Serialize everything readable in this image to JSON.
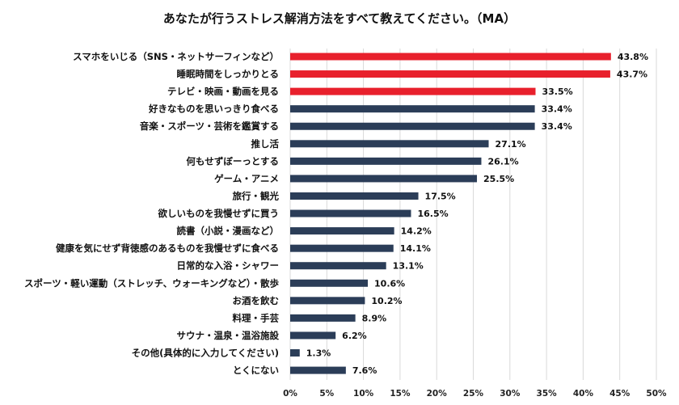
{
  "chart_data": {
    "type": "bar",
    "orientation": "horizontal",
    "title": "あなたが行うストレス解消方法をすべて教えてください。（MA）",
    "xlabel": "",
    "ylabel": "",
    "xlim": [
      0,
      50
    ],
    "x_ticks": [
      "0%",
      "5%",
      "10%",
      "15%",
      "20%",
      "25%",
      "30%",
      "35%",
      "40%",
      "45%",
      "50%"
    ],
    "grid": "vertical",
    "categories": [
      "スマホをいじる（SNS・ネットサーフィンなど）",
      "睡眠時間をしっかりとる",
      "テレビ・映画・動画を見る",
      "好きなものを思いっきり食べる",
      "音楽・スポーツ・芸術を鑑賞する",
      "推し活",
      "何もせずぼーっとする",
      "ゲーム・アニメ",
      "旅行・観光",
      "欲しいものを我慢せずに買う",
      "読書（小説・漫画など）",
      "健康を気にせず背徳感のあるものを我慢せずに食べる",
      "日常的な入浴・シャワー",
      "スポーツ・軽い運動（ストレッチ、ウォーキングなど）・散歩",
      "お酒を飲む",
      "料理・手芸",
      "サウナ・温泉・温浴施設",
      "その他(具体的に入力してください)",
      "とくにない"
    ],
    "values": [
      43.8,
      43.7,
      33.5,
      33.4,
      33.4,
      27.1,
      26.1,
      25.5,
      17.5,
      16.5,
      14.2,
      14.1,
      13.1,
      10.6,
      10.2,
      8.9,
      6.2,
      1.3,
      7.6
    ],
    "value_labels": [
      "43.8%",
      "43.7%",
      "33.5%",
      "33.4%",
      "33.4%",
      "27.1%",
      "26.1%",
      "25.5%",
      "17.5%",
      "16.5%",
      "14.2%",
      "14.1%",
      "13.1%",
      "10.6%",
      "10.2%",
      "8.9%",
      "6.2%",
      "1.3%",
      "7.6%"
    ],
    "highlight_count": 3,
    "colors": {
      "highlight": "#e8202c",
      "default": "#2b3d58",
      "grid": "#d9d9d9"
    }
  }
}
